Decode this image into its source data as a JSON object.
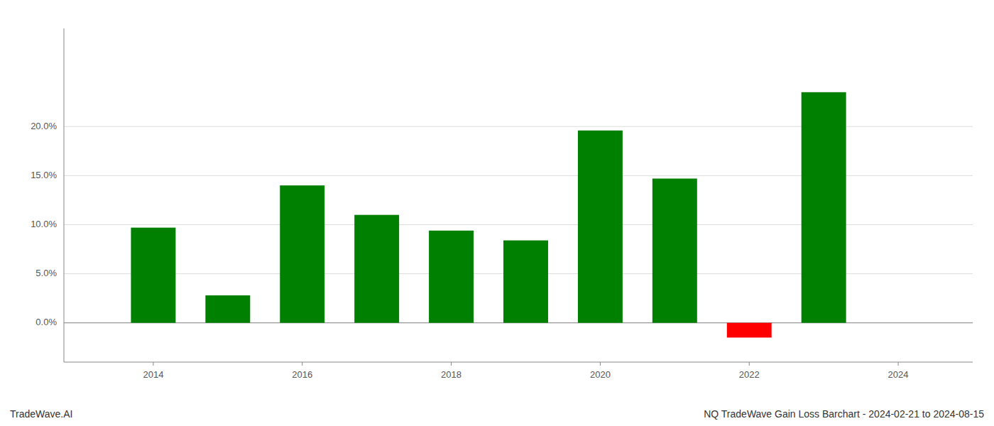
{
  "chart_data": {
    "type": "bar",
    "title": "NQ TradeWave Gain Loss Barchart - 2024-02-21 to 2024-08-15",
    "annotations": [
      "TradeWave.AI"
    ],
    "x": [
      2014,
      2015,
      2016,
      2017,
      2018,
      2019,
      2020,
      2021,
      2022,
      2023
    ],
    "values": [
      0.097,
      0.028,
      0.14,
      0.11,
      0.094,
      0.084,
      0.196,
      0.147,
      -0.015,
      0.235
    ],
    "colors": [
      "#008000",
      "#008000",
      "#008000",
      "#008000",
      "#008000",
      "#008000",
      "#008000",
      "#008000",
      "#ff0000",
      "#008000"
    ],
    "xlim": [
      2012.8,
      2025.0
    ],
    "xticks": [
      2014,
      2016,
      2018,
      2020,
      2022,
      2024
    ],
    "ylim": [
      -0.04,
      0.3
    ],
    "yticks": [
      {
        "value": 0.0,
        "label": "0.0%"
      },
      {
        "value": 0.05,
        "label": "5.0%"
      },
      {
        "value": 0.1,
        "label": "10.0%"
      },
      {
        "value": 0.15,
        "label": "15.0%"
      },
      {
        "value": 0.2,
        "label": "20.0%"
      }
    ],
    "grid": true
  }
}
